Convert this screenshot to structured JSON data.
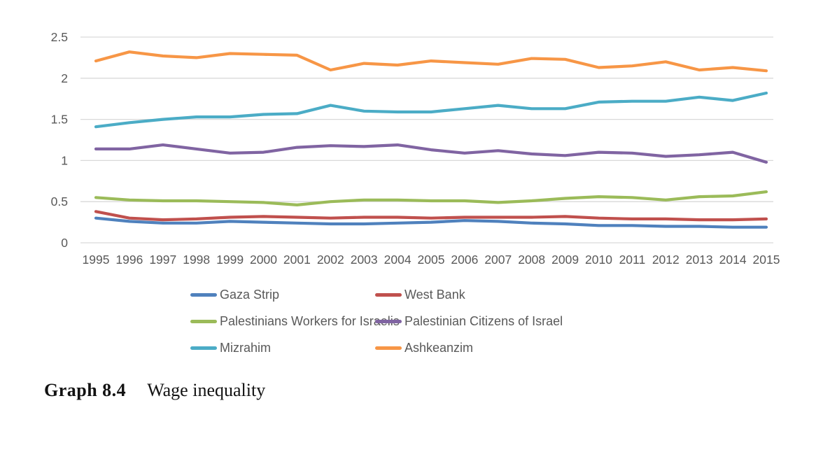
{
  "chart_data": {
    "type": "line",
    "title": "",
    "xlabel": "",
    "ylabel": "",
    "categories": [
      "1995",
      "1996",
      "1997",
      "1998",
      "1999",
      "2000",
      "2001",
      "2002",
      "2003",
      "2004",
      "2005",
      "2006",
      "2007",
      "2008",
      "2009",
      "2010",
      "2011",
      "2012",
      "2013",
      "2014",
      "2015"
    ],
    "series": [
      {
        "name": "Gaza Strip",
        "color": "#4F81BD",
        "values": [
          0.3,
          0.26,
          0.24,
          0.24,
          0.26,
          0.25,
          0.24,
          0.23,
          0.23,
          0.24,
          0.25,
          0.27,
          0.26,
          0.24,
          0.23,
          0.21,
          0.21,
          0.2,
          0.2,
          0.19,
          0.19
        ]
      },
      {
        "name": "West Bank",
        "color": "#C0504D",
        "values": [
          0.38,
          0.3,
          0.28,
          0.29,
          0.31,
          0.32,
          0.31,
          0.3,
          0.31,
          0.31,
          0.3,
          0.31,
          0.31,
          0.31,
          0.32,
          0.3,
          0.29,
          0.29,
          0.28,
          0.28,
          0.29
        ]
      },
      {
        "name": "Palestinians Workers for Israelis",
        "color": "#9BBB59",
        "values": [
          0.55,
          0.52,
          0.51,
          0.51,
          0.5,
          0.49,
          0.46,
          0.5,
          0.52,
          0.52,
          0.51,
          0.51,
          0.49,
          0.51,
          0.54,
          0.56,
          0.55,
          0.52,
          0.56,
          0.57,
          0.62
        ]
      },
      {
        "name": "Palestinian Citizens of Israel",
        "color": "#8064A2",
        "values": [
          1.14,
          1.14,
          1.19,
          1.14,
          1.09,
          1.1,
          1.16,
          1.18,
          1.17,
          1.19,
          1.13,
          1.09,
          1.12,
          1.08,
          1.06,
          1.1,
          1.09,
          1.05,
          1.07,
          1.1,
          0.98
        ]
      },
      {
        "name": "Mizrahim",
        "color": "#4BACC6",
        "values": [
          1.41,
          1.46,
          1.5,
          1.53,
          1.53,
          1.56,
          1.57,
          1.67,
          1.6,
          1.59,
          1.59,
          1.63,
          1.67,
          1.63,
          1.63,
          1.71,
          1.72,
          1.72,
          1.77,
          1.73,
          1.82
        ]
      },
      {
        "name": "Ashkeanzim",
        "color": "#F79646",
        "values": [
          2.21,
          2.32,
          2.27,
          2.25,
          2.3,
          2.29,
          2.28,
          2.1,
          2.18,
          2.16,
          2.21,
          2.19,
          2.17,
          2.24,
          2.23,
          2.13,
          2.15,
          2.2,
          2.1,
          2.13,
          2.09
        ]
      }
    ],
    "ylim": [
      0,
      2.5
    ],
    "yticks": [
      0,
      0.5,
      1,
      1.5,
      2,
      2.5
    ],
    "ytick_labels": [
      "0",
      "0.5",
      "1",
      "1.5",
      "2",
      "2.5"
    ],
    "grid": true,
    "legend_position": "bottom"
  },
  "caption": {
    "label": "Graph 8.4",
    "title": "Wage inequality"
  },
  "colors": {
    "axis_text": "#595959",
    "legend_text": "#595959",
    "gridline": "#D9D9D9",
    "background": "#FFFFFF"
  }
}
